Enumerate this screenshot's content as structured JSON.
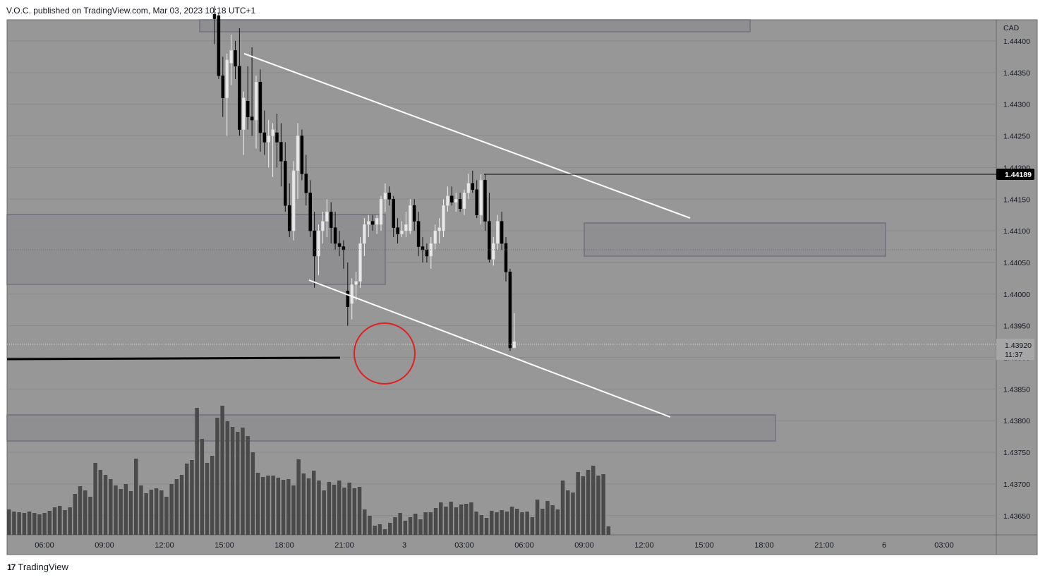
{
  "header": {
    "published_text": "V.O.C. published on TradingView.com, Mar 03, 2023 10:18 UTC+1"
  },
  "footer": {
    "brand": "TradingView",
    "logo_glyph": "17"
  },
  "chart_data": {
    "type": "candlestick",
    "currency_label": "CAD",
    "price_axis": {
      "ticks": [
        "1.44400",
        "1.44350",
        "1.44300",
        "1.44250",
        "1.44200",
        "1.44150",
        "1.44100",
        "1.44050",
        "1.44000",
        "1.43950",
        "1.43900",
        "1.43850",
        "1.43800",
        "1.43750",
        "1.43700",
        "1.43650"
      ],
      "range": [
        1.4363,
        1.4445
      ]
    },
    "time_axis": {
      "ticks": [
        "06:00",
        "09:00",
        "12:00",
        "15:00",
        "18:00",
        "21:00",
        "3",
        "03:00",
        "06:00",
        "09:00",
        "12:00",
        "15:00",
        "18:00",
        "21:00",
        "6",
        "03:00"
      ]
    },
    "last_price": {
      "value": "1.43920",
      "countdown": "11:37"
    },
    "marked_level": {
      "value": "1.44189"
    },
    "colors": {
      "background": "#979797",
      "up_candle": "#e8e8e8",
      "down_candle": "#000000",
      "volume": "#4a4a4a",
      "trendline": "#ffffff",
      "zone_fill": "#8d8d91",
      "zone_border": "#6f7280",
      "circle": "#e02020",
      "label_bg": "#000000"
    },
    "grid": true,
    "annotations": [
      "descending channel",
      "supply/demand zones",
      "liquidity sweep circle",
      "horizontal level"
    ]
  }
}
